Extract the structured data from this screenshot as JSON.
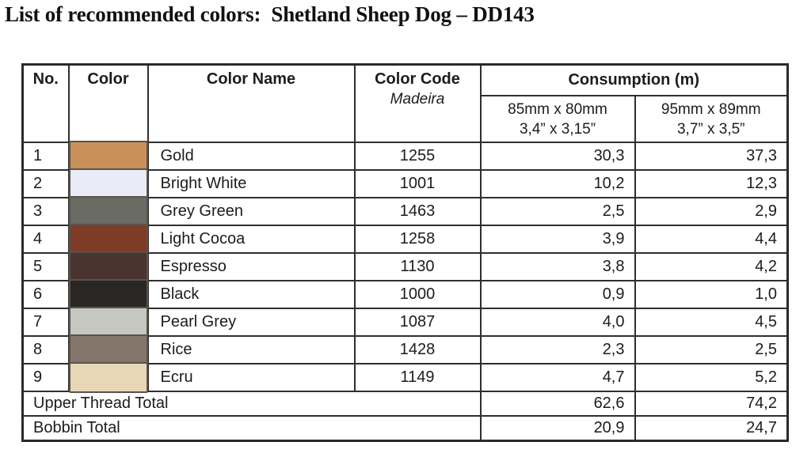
{
  "title": "List of recommended colors:  Shetland Sheep Dog – DD143",
  "table": {
    "headers": {
      "no": "No.",
      "color": "Color",
      "color_name": "Color Name",
      "color_code": "Color Code",
      "color_code_brand": "Madeira",
      "consumption": "Consumption (m)",
      "size1_line1": "85mm x 80mm",
      "size1_line2": "3,4” x 3,15”",
      "size2_line1": "95mm x 89mm",
      "size2_line2": "3,7” x 3,5”"
    },
    "rows": [
      {
        "no": "1",
        "swatch_color": "#C9905A",
        "name": "Gold",
        "code": "1255",
        "c1": "30,3",
        "c2": "37,3"
      },
      {
        "no": "2",
        "swatch_color": "#E9EBF6",
        "name": "Bright White",
        "code": "1001",
        "c1": "10,2",
        "c2": "12,3"
      },
      {
        "no": "3",
        "swatch_color": "#6B6B66",
        "name": "Grey Green",
        "code": "1463",
        "c1": "2,5",
        "c2": "2,9"
      },
      {
        "no": "4",
        "swatch_color": "#7E3C27",
        "name": "Light Cocoa",
        "code": "1258",
        "c1": "3,9",
        "c2": "4,4"
      },
      {
        "no": "5",
        "swatch_color": "#4B3430",
        "name": "Espresso",
        "code": "1130",
        "c1": "3,8",
        "c2": "4,2"
      },
      {
        "no": "6",
        "swatch_color": "#2A2626",
        "name": "Black",
        "code": "1000",
        "c1": "0,9",
        "c2": "1,0"
      },
      {
        "no": "7",
        "swatch_color": "#C5C8C0",
        "name": "Pearl Grey",
        "code": "1087",
        "c1": "4,0",
        "c2": "4,5"
      },
      {
        "no": "8",
        "swatch_color": "#85766B",
        "name": "Rice",
        "code": "1428",
        "c1": "2,3",
        "c2": "2,5"
      },
      {
        "no": "9",
        "swatch_color": "#E8D7B6",
        "name": "Ecru",
        "code": "1149",
        "c1": "4,7",
        "c2": "5,2"
      }
    ],
    "totals": [
      {
        "label": "Upper Thread Total",
        "c1": "62,6",
        "c2": "74,2"
      },
      {
        "label": "Bobbin Total",
        "c1": "20,9",
        "c2": "24,7"
      }
    ]
  }
}
